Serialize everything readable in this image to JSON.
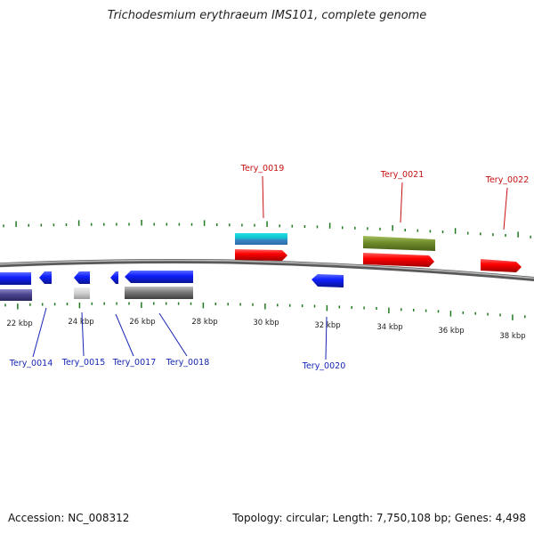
{
  "title": "Trichodesmium erythraeum IMS101, complete genome",
  "footer": {
    "accession": "Accession: NC_008312",
    "summary": "Topology: circular; Length: 7,750,108 bp; Genes: 4,498"
  },
  "colors": {
    "backbone": "#8a8a8a",
    "tick": "#1f7a1f",
    "forward_label": "#c81010",
    "reverse_label": "#1525b5",
    "scale_text": "#222222"
  },
  "scale_labels": [
    "22 kbp",
    "24 kbp",
    "26 kbp",
    "28 kbp",
    "30 kbp",
    "32 kbp",
    "34 kbp",
    "36 kbp",
    "38 kbp"
  ],
  "genes_top": [
    "Tery_0019",
    "Tery_0021",
    "Tery_0022"
  ],
  "genes_bottom": [
    "Tery_0014",
    "Tery_0015",
    "Tery_0017",
    "Tery_0018",
    "Tery_0020"
  ]
}
